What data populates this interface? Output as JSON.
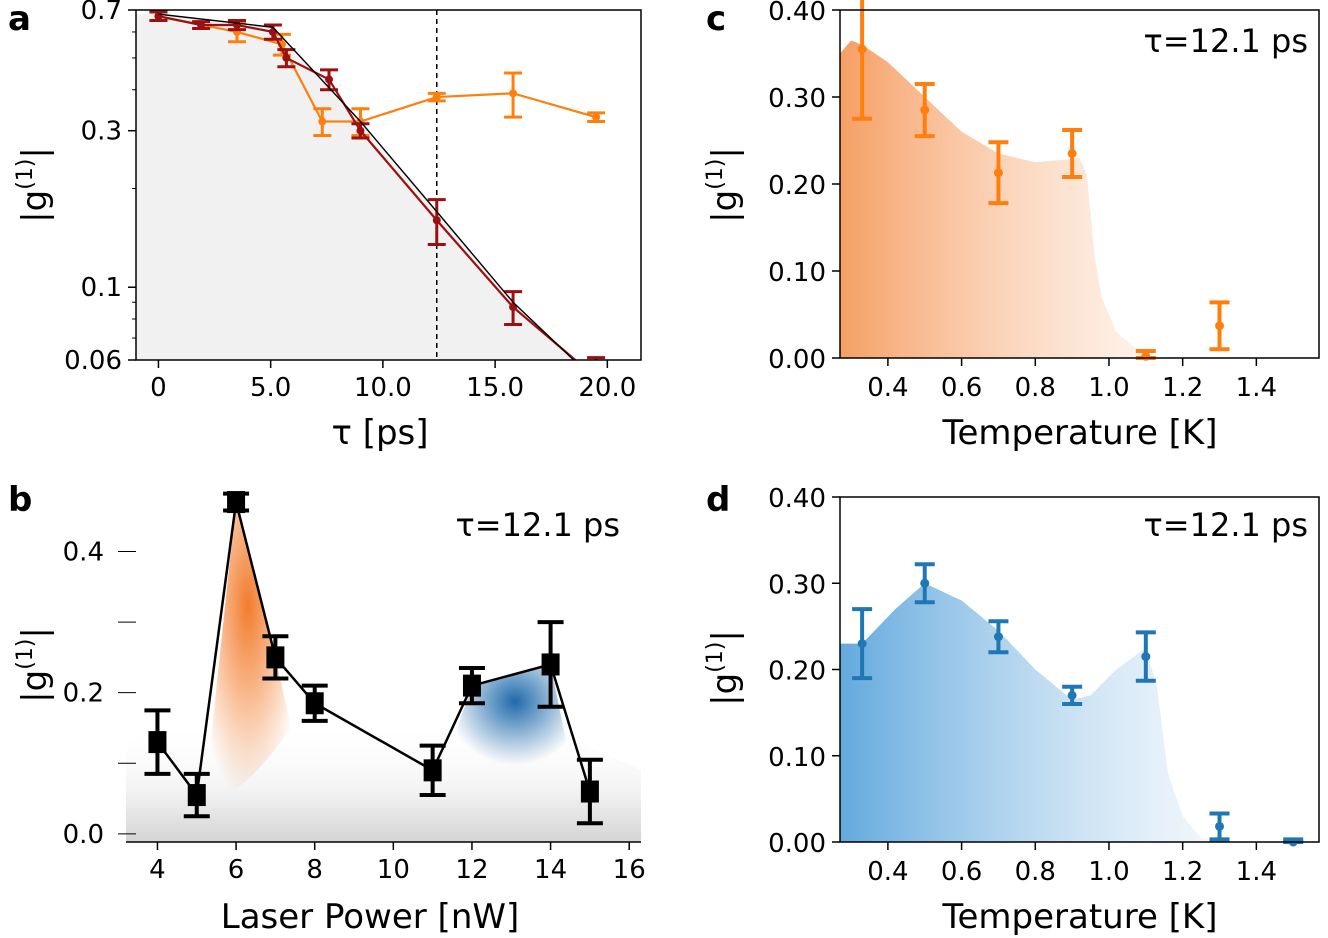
{
  "chart_data": [
    {
      "panel": "a",
      "type": "line",
      "xlabel": "τ [ps]",
      "ylabel": "|g(1)|",
      "xlim": [
        -1,
        21.5
      ],
      "ylim": [
        0.06,
        0.7
      ],
      "yscale": "log",
      "xticks": [
        "0",
        "5.0",
        "10.0",
        "15.0",
        "20.0"
      ],
      "yticks": [
        "0.7",
        "0.3",
        "0.1",
        "0.06"
      ],
      "vline_x": 12.4,
      "series": [
        {
          "color": "#ff7f0e",
          "style": "errorbar-line",
          "x": [
            0.0,
            3.5,
            5.5,
            7.3,
            9.0,
            12.4,
            15.8,
            19.5
          ],
          "y": [
            0.67,
            0.6,
            0.55,
            0.32,
            0.32,
            0.38,
            0.39,
            0.33
          ],
          "err": [
            0.02,
            0.04,
            0.04,
            0.03,
            0.03,
            0.01,
            0.06,
            0.01
          ]
        },
        {
          "color": "#9b1010",
          "style": "errorbar-line",
          "x": [
            0.0,
            1.9,
            3.5,
            5.1,
            5.7,
            7.6,
            9.0,
            12.4,
            15.8,
            19.5
          ],
          "y": [
            0.67,
            0.63,
            0.63,
            0.6,
            0.5,
            0.43,
            0.3,
            0.16,
            0.087,
            0.053
          ],
          "err": [
            0.02,
            0.015,
            0.02,
            0.03,
            0.03,
            0.03,
            0.015,
            0.025,
            0.01,
            0.008
          ]
        },
        {
          "color": "#000000",
          "style": "line",
          "x": [
            0.0,
            5.1,
            9.0,
            12.4,
            15.8,
            18.5
          ],
          "y": [
            0.68,
            0.62,
            0.32,
            0.17,
            0.09,
            0.06
          ]
        }
      ]
    },
    {
      "panel": "b",
      "type": "line",
      "xlabel": "Laser Power [nW]",
      "ylabel": "|g(1)|",
      "annotation": "τ=12.1 ps",
      "xlim": [
        3.2,
        16.3
      ],
      "ylim": [
        -0.02,
        0.48
      ],
      "xticks": [
        "4",
        "6",
        "8",
        "10",
        "12",
        "14",
        "16"
      ],
      "yticks": [
        "0.0",
        "0.2",
        "0.4"
      ],
      "series": [
        {
          "color": "#000000",
          "marker": "square",
          "x": [
            4,
            5,
            6,
            7,
            8,
            11,
            12,
            14,
            15
          ],
          "y": [
            0.13,
            0.055,
            0.47,
            0.25,
            0.185,
            0.09,
            0.21,
            0.24,
            0.06
          ],
          "err": [
            0.045,
            0.03,
            0.012,
            0.03,
            0.025,
            0.035,
            0.025,
            0.06,
            0.045
          ]
        }
      ]
    },
    {
      "panel": "c",
      "type": "scatter",
      "xlabel": "Temperature [K]",
      "ylabel": "|g(1)|",
      "annotation": "τ=12.1 ps",
      "xlim": [
        0.27,
        1.57
      ],
      "ylim": [
        0.0,
        0.4
      ],
      "xticks": [
        "0.4",
        "0.6",
        "0.8",
        "1.0",
        "1.2",
        "1.4"
      ],
      "yticks": [
        "0.00",
        "0.10",
        "0.20",
        "0.30",
        "0.40"
      ],
      "series": [
        {
          "color": "#ff7f0e",
          "x": [
            0.33,
            0.5,
            0.7,
            0.9,
            1.1,
            1.3
          ],
          "y": [
            0.355,
            0.285,
            0.213,
            0.235,
            0.002,
            0.037
          ],
          "err": [
            0.08,
            0.03,
            0.035,
            0.027,
            0.006,
            0.027
          ]
        }
      ]
    },
    {
      "panel": "d",
      "type": "scatter",
      "xlabel": "Temperature [K]",
      "ylabel": "|g(1)|",
      "annotation": "τ=12.1 ps",
      "xlim": [
        0.27,
        1.57
      ],
      "ylim": [
        0.0,
        0.4
      ],
      "xticks": [
        "0.4",
        "0.6",
        "0.8",
        "1.0",
        "1.2",
        "1.4"
      ],
      "yticks": [
        "0.00",
        "0.10",
        "0.20",
        "0.30",
        "0.40"
      ],
      "series": [
        {
          "color": "#1f77b4",
          "x": [
            0.33,
            0.5,
            0.7,
            0.9,
            1.1,
            1.3,
            1.5
          ],
          "y": [
            0.23,
            0.3,
            0.238,
            0.17,
            0.215,
            0.018,
            0.0
          ],
          "err": [
            0.04,
            0.022,
            0.018,
            0.01,
            0.028,
            0.015,
            0.003
          ]
        }
      ]
    }
  ]
}
